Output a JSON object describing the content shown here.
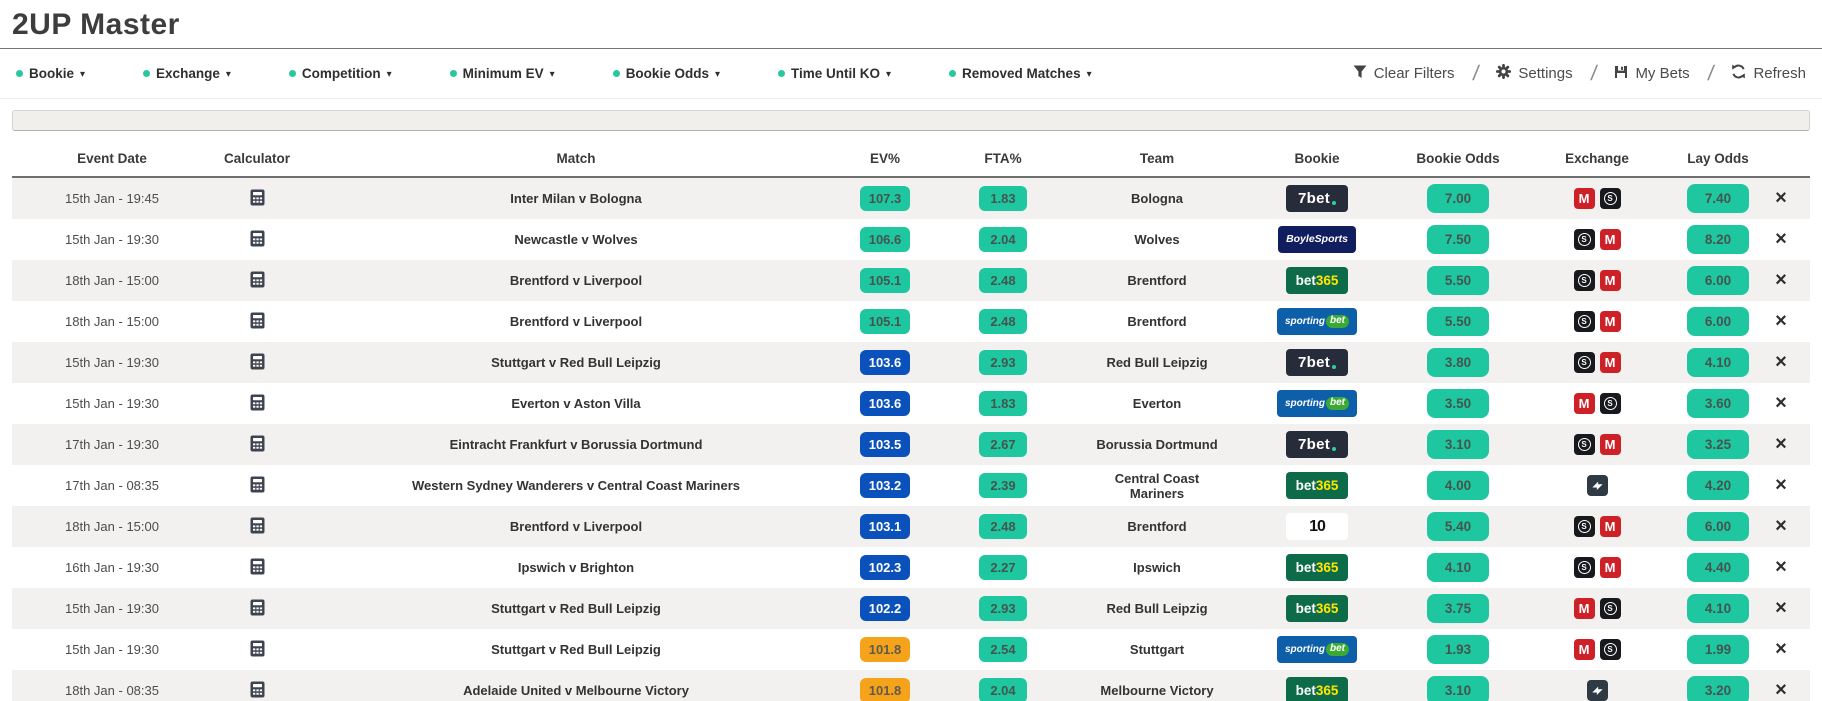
{
  "title": "2UP Master",
  "filters": [
    {
      "label": "Bookie"
    },
    {
      "label": "Exchange"
    },
    {
      "label": "Competition"
    },
    {
      "label": "Minimum EV"
    },
    {
      "label": "Bookie Odds"
    },
    {
      "label": "Time Until KO"
    },
    {
      "label": "Removed Matches"
    }
  ],
  "actions": [
    {
      "label": "Clear Filters",
      "icon": "filter-icon"
    },
    {
      "label": "Settings",
      "icon": "gear-icon"
    },
    {
      "label": "My Bets",
      "icon": "save-icon"
    },
    {
      "label": "Refresh",
      "icon": "refresh-icon"
    }
  ],
  "colors": {
    "accent_green": "#1fc7a0",
    "ev_blue": "#0b51bb",
    "ev_orange": "#f6a31c",
    "filter_dot": "#29c79c",
    "matchbook_red": "#cd2027",
    "smarkets_black": "#17191d",
    "betfair_navy": "#2e3a44",
    "row_alt": "#f3f1ef"
  },
  "bookies": {
    "7bet": {
      "text": "7bet",
      "dot": true
    },
    "boylesports": {
      "text": "BoyleSports"
    },
    "bet365": {
      "text": "bet",
      "text2": "365"
    },
    "sportingbet": {
      "text": "sporting",
      "text2": "bet"
    },
    "10bet": {
      "text": "10"
    }
  },
  "exchanges": {
    "matchbook": {
      "label": "M"
    },
    "smarkets": {
      "label": "S"
    },
    "betfair": {
      "label": ""
    }
  },
  "table": {
    "columns": [
      "Event Date",
      "Calculator",
      "Match",
      "EV%",
      "FTA%",
      "Team",
      "Bookie",
      "Bookie Odds",
      "Exchange",
      "Lay Odds"
    ],
    "rows": [
      {
        "event_date": "15th Jan - 19:45",
        "match": "Inter Milan v Bologna",
        "ev": "107.3",
        "ev_color": "green",
        "fta": "1.83",
        "team": "Bologna",
        "bookie": "7bet",
        "bookie_odds": "7.00",
        "exchanges": [
          "matchbook",
          "smarkets"
        ],
        "lay_odds": "7.40"
      },
      {
        "event_date": "15th Jan - 19:30",
        "match": "Newcastle v Wolves",
        "ev": "106.6",
        "ev_color": "green",
        "fta": "2.04",
        "team": "Wolves",
        "bookie": "boylesports",
        "bookie_odds": "7.50",
        "exchanges": [
          "smarkets",
          "matchbook"
        ],
        "lay_odds": "8.20"
      },
      {
        "event_date": "18th Jan - 15:00",
        "match": "Brentford v Liverpool",
        "ev": "105.1",
        "ev_color": "green",
        "fta": "2.48",
        "team": "Brentford",
        "bookie": "bet365",
        "bookie_odds": "5.50",
        "exchanges": [
          "smarkets",
          "matchbook"
        ],
        "lay_odds": "6.00"
      },
      {
        "event_date": "18th Jan - 15:00",
        "match": "Brentford v Liverpool",
        "ev": "105.1",
        "ev_color": "green",
        "fta": "2.48",
        "team": "Brentford",
        "bookie": "sportingbet",
        "bookie_odds": "5.50",
        "exchanges": [
          "smarkets",
          "matchbook"
        ],
        "lay_odds": "6.00"
      },
      {
        "event_date": "15th Jan - 19:30",
        "match": "Stuttgart v Red Bull Leipzig",
        "ev": "103.6",
        "ev_color": "blue",
        "fta": "2.93",
        "team": "Red Bull Leipzig",
        "bookie": "7bet",
        "bookie_odds": "3.80",
        "exchanges": [
          "smarkets",
          "matchbook"
        ],
        "lay_odds": "4.10"
      },
      {
        "event_date": "15th Jan - 19:30",
        "match": "Everton v Aston Villa",
        "ev": "103.6",
        "ev_color": "blue",
        "fta": "1.83",
        "team": "Everton",
        "bookie": "sportingbet",
        "bookie_odds": "3.50",
        "exchanges": [
          "matchbook",
          "smarkets"
        ],
        "lay_odds": "3.60"
      },
      {
        "event_date": "17th Jan - 19:30",
        "match": "Eintracht Frankfurt v Borussia Dortmund",
        "ev": "103.5",
        "ev_color": "blue",
        "fta": "2.67",
        "team": "Borussia Dortmund",
        "bookie": "7bet",
        "bookie_odds": "3.10",
        "exchanges": [
          "smarkets",
          "matchbook"
        ],
        "lay_odds": "3.25"
      },
      {
        "event_date": "17th Jan - 08:35",
        "match": "Western Sydney Wanderers v Central Coast Mariners",
        "ev": "103.2",
        "ev_color": "blue",
        "fta": "2.39",
        "team": "Central Coast Mariners",
        "bookie": "bet365",
        "bookie_odds": "4.00",
        "exchanges": [
          "betfair"
        ],
        "lay_odds": "4.20"
      },
      {
        "event_date": "18th Jan - 15:00",
        "match": "Brentford v Liverpool",
        "ev": "103.1",
        "ev_color": "blue",
        "fta": "2.48",
        "team": "Brentford",
        "bookie": "10bet",
        "bookie_odds": "5.40",
        "exchanges": [
          "smarkets",
          "matchbook"
        ],
        "lay_odds": "6.00"
      },
      {
        "event_date": "16th Jan - 19:30",
        "match": "Ipswich v Brighton",
        "ev": "102.3",
        "ev_color": "blue",
        "fta": "2.27",
        "team": "Ipswich",
        "bookie": "bet365",
        "bookie_odds": "4.10",
        "exchanges": [
          "smarkets",
          "matchbook"
        ],
        "lay_odds": "4.40"
      },
      {
        "event_date": "15th Jan - 19:30",
        "match": "Stuttgart v Red Bull Leipzig",
        "ev": "102.2",
        "ev_color": "blue",
        "fta": "2.93",
        "team": "Red Bull Leipzig",
        "bookie": "bet365",
        "bookie_odds": "3.75",
        "exchanges": [
          "matchbook",
          "smarkets"
        ],
        "lay_odds": "4.10"
      },
      {
        "event_date": "15th Jan - 19:30",
        "match": "Stuttgart v Red Bull Leipzig",
        "ev": "101.8",
        "ev_color": "orange",
        "fta": "2.54",
        "team": "Stuttgart",
        "bookie": "sportingbet",
        "bookie_odds": "1.93",
        "exchanges": [
          "matchbook",
          "smarkets"
        ],
        "lay_odds": "1.99"
      },
      {
        "event_date": "18th Jan - 08:35",
        "match": "Adelaide United v Melbourne Victory",
        "ev": "101.8",
        "ev_color": "orange",
        "fta": "2.04",
        "team": "Melbourne Victory",
        "bookie": "bet365",
        "bookie_odds": "3.10",
        "exchanges": [
          "betfair"
        ],
        "lay_odds": "3.20"
      }
    ]
  }
}
